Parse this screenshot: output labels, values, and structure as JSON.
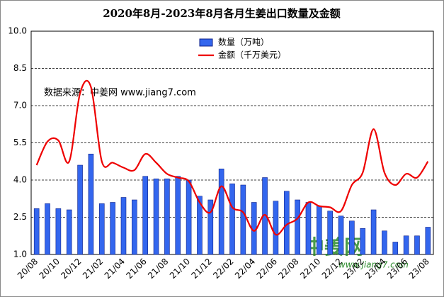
{
  "chart_data": {
    "type": "bar_line",
    "title": "2020年8月-2023年8月各月生姜出口数量及金额",
    "annotation": "数据来源：中姜网 www.jiang7.com",
    "watermark": [
      "中姜网",
      "www.jiang7.com"
    ],
    "categories": [
      "20/08",
      null,
      "20/10",
      null,
      "20/12",
      null,
      "21/02",
      null,
      "21/04",
      null,
      "21/06",
      null,
      "21/08",
      null,
      "21/10",
      null,
      "21/12",
      null,
      "22/02",
      null,
      "22/04",
      null,
      "22/06",
      null,
      "22/08",
      null,
      "22/10",
      null,
      "22/12",
      null,
      "23/02",
      null,
      "23/04",
      null,
      "23/06",
      null,
      "23/08"
    ],
    "series": [
      {
        "name": "数量（万吨）",
        "color": "#3366ee",
        "kind": "bar",
        "values": [
          2.85,
          3.05,
          2.85,
          2.8,
          4.6,
          5.05,
          3.05,
          3.1,
          3.3,
          3.2,
          4.15,
          4.05,
          4.05,
          4.15,
          4.0,
          3.35,
          3.2,
          4.45,
          3.85,
          3.8,
          3.1,
          4.1,
          3.15,
          3.55,
          3.2,
          3.1,
          2.95,
          2.75,
          2.55,
          2.35,
          2.05,
          2.8,
          1.95,
          1.5,
          1.75,
          1.75,
          2.1
        ]
      },
      {
        "name": "金额（千万美元）",
        "color": "#ee0000",
        "kind": "line",
        "values": [
          4.6,
          5.55,
          5.6,
          4.75,
          7.5,
          7.75,
          4.75,
          4.7,
          4.5,
          4.4,
          5.05,
          4.7,
          4.25,
          4.1,
          3.95,
          3.1,
          2.7,
          3.75,
          2.9,
          2.7,
          1.95,
          2.6,
          1.8,
          2.2,
          2.45,
          3.1,
          2.95,
          2.9,
          2.75,
          3.8,
          4.3,
          6.05,
          4.3,
          3.8,
          4.25,
          4.1,
          4.75
        ]
      }
    ],
    "ylim": [
      1,
      10
    ],
    "yticks": [
      {
        "value": 1,
        "label": "1.0"
      },
      {
        "value": 2.5,
        "label": "2.5"
      },
      {
        "value": 4,
        "label": "4.0"
      },
      {
        "value": 5.5,
        "label": "5.5"
      },
      {
        "value": 7,
        "label": "7.0"
      },
      {
        "value": 8.5,
        "label": "8.5"
      },
      {
        "value": 10,
        "label": "10.0"
      }
    ],
    "grid": true
  }
}
